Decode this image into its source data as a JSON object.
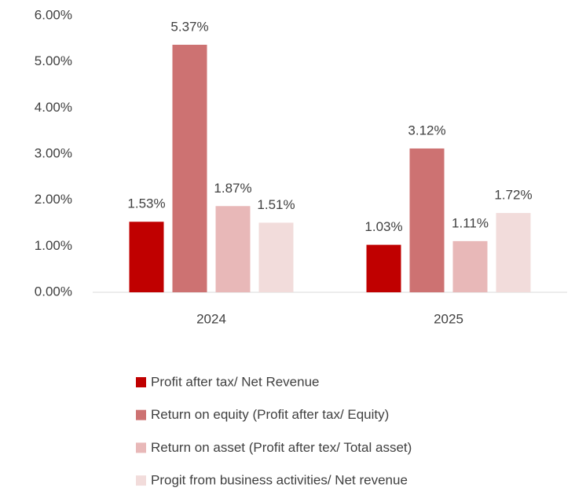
{
  "chart_data": {
    "type": "bar",
    "categories": [
      "2024",
      "2025"
    ],
    "series": [
      {
        "name": "Profit after tax/ Net Revenue",
        "color": "#c00000",
        "values": [
          1.53,
          1.03
        ],
        "value_labels": [
          "1.53%",
          "1.03%"
        ]
      },
      {
        "name": "Return on equity (Profit after tax/ Equity)",
        "color": "#cd7272",
        "values": [
          5.37,
          3.12
        ],
        "value_labels": [
          "5.37%",
          "3.12%"
        ]
      },
      {
        "name": "Return on asset (Profit after tex/ Total asset)",
        "color": "#e8b8b8",
        "values": [
          1.87,
          1.11
        ],
        "value_labels": [
          "1.87%",
          "1.11%"
        ]
      },
      {
        "name": "Progit from business activities/ Net revenue",
        "color": "#f2dcdb",
        "values": [
          1.51,
          1.72
        ],
        "value_labels": [
          "1.51%",
          "1.72%"
        ]
      }
    ],
    "ylim": [
      0,
      6
    ],
    "yticks": [
      {
        "value": 0,
        "label": "0.00%"
      },
      {
        "value": 1,
        "label": "1.00%"
      },
      {
        "value": 2,
        "label": "2.00%"
      },
      {
        "value": 3,
        "label": "3.00%"
      },
      {
        "value": 4,
        "label": "4.00%"
      },
      {
        "value": 5,
        "label": "5.00%"
      },
      {
        "value": 6,
        "label": "6.00%"
      }
    ],
    "grid": false,
    "legend": "bottom"
  }
}
